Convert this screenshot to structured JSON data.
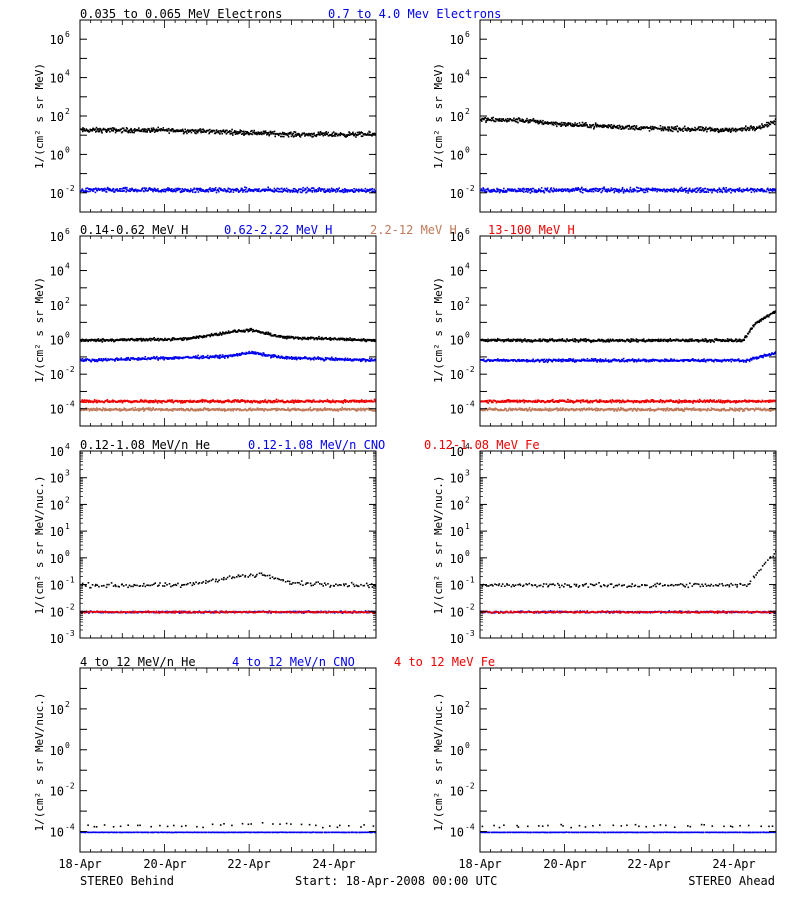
{
  "colors": {
    "black": "#000000",
    "blue": "#0000ee",
    "red": "#ee0000",
    "brown": "#c07a5a"
  },
  "legends": [
    [
      {
        "text": "0.035 to 0.065 MeV Electrons",
        "color": "black"
      },
      {
        "text": "0.7 to 4.0 Mev Electrons",
        "color": "blue"
      }
    ],
    [
      {
        "text": "0.14-0.62 MeV H",
        "color": "black"
      },
      {
        "text": "0.62-2.22 MeV H",
        "color": "blue"
      },
      {
        "text": "2.2-12 MeV H",
        "color": "brown"
      },
      {
        "text": "13-100 MeV H",
        "color": "red"
      }
    ],
    [
      {
        "text": "0.12-1.08 MeV/n He",
        "color": "black"
      },
      {
        "text": "0.12-1.08 MeV/n CNO",
        "color": "blue"
      },
      {
        "text": "0.12-1.08 MeV Fe",
        "color": "red"
      }
    ],
    [
      {
        "text": "4 to 12 MeV/n He",
        "color": "black"
      },
      {
        "text": "4 to 12 MeV/n CNO",
        "color": "blue"
      },
      {
        "text": "4 to 12 MeV Fe",
        "color": "red"
      }
    ]
  ],
  "ylabels": {
    "row1": "1/(cm² s sr MeV)",
    "row2": "1/(cm² s sr MeV)",
    "row3": "1/(cm² s sr MeV/nuc.)",
    "row4": "1/(cm² s sr MeV/nuc.)"
  },
  "xtick_labels": [
    "18-Apr",
    "20-Apr",
    "22-Apr",
    "24-Apr"
  ],
  "footer": {
    "left": "STEREO Behind",
    "center": "Start: 18-Apr-2008 00:00 UTC",
    "right": "STEREO Ahead"
  },
  "chart_data": [
    {
      "type": "scatter",
      "row": 1,
      "spacecraft": "STEREO Behind",
      "x_range": [
        "2008-04-18",
        "2008-04-25"
      ],
      "log_y": true,
      "ylim_exp": [
        -3,
        7
      ],
      "ytick_exp": [
        -2,
        0,
        2,
        4,
        6
      ],
      "series": [
        {
          "name": "0.035 to 0.065 MeV Electrons",
          "color": "black",
          "points": [
            [
              "2008-04-18",
              20
            ],
            [
              "2008-04-20",
              20
            ],
            [
              "2008-04-22",
              15
            ],
            [
              "2008-04-23",
              12
            ],
            [
              "2008-04-25",
              12
            ]
          ]
        },
        {
          "name": "0.7 to 4.0 Mev Electrons",
          "color": "blue",
          "points": [
            [
              "2008-04-18",
              0.015
            ],
            [
              "2008-04-21",
              0.015
            ],
            [
              "2008-04-25",
              0.015
            ]
          ]
        }
      ]
    },
    {
      "type": "scatter",
      "row": 1,
      "spacecraft": "STEREO Ahead",
      "x_range": [
        "2008-04-18",
        "2008-04-25"
      ],
      "log_y": true,
      "ylim_exp": [
        -3,
        7
      ],
      "ytick_exp": [
        -2,
        0,
        2,
        4,
        6
      ],
      "series": [
        {
          "name": "0.035 to 0.065 MeV Electrons",
          "color": "black",
          "points": [
            [
              "2008-04-18",
              70
            ],
            [
              "2008-04-19",
              65
            ],
            [
              "2008-04-20",
              40
            ],
            [
              "2008-04-22",
              25
            ],
            [
              "2008-04-24",
              20
            ],
            [
              "2008-04-24.6",
              30
            ],
            [
              "2008-04-25",
              60
            ]
          ]
        },
        {
          "name": "0.7 to 4.0 Mev Electrons",
          "color": "blue",
          "points": [
            [
              "2008-04-18",
              0.015
            ],
            [
              "2008-04-22",
              0.015
            ],
            [
              "2008-04-25",
              0.015
            ]
          ]
        }
      ]
    },
    {
      "type": "scatter",
      "row": 2,
      "spacecraft": "STEREO Behind",
      "x_range": [
        "2008-04-18",
        "2008-04-25"
      ],
      "log_y": true,
      "ylim_exp": [
        -5,
        6
      ],
      "ytick_exp": [
        -4,
        -2,
        0,
        2,
        4,
        6
      ],
      "series": [
        {
          "name": "0.14-0.62 MeV H",
          "color": "black",
          "points": [
            [
              "2008-04-18",
              1
            ],
            [
              "2008-04-20.5",
              1.2
            ],
            [
              "2008-04-21.5",
              3
            ],
            [
              "2008-04-22",
              4
            ],
            [
              "2008-04-22.8",
              1.5
            ],
            [
              "2008-04-25",
              1
            ]
          ]
        },
        {
          "name": "0.62-2.22 MeV H",
          "color": "blue",
          "points": [
            [
              "2008-04-18",
              0.07
            ],
            [
              "2008-04-21.5",
              0.12
            ],
            [
              "2008-04-22",
              0.2
            ],
            [
              "2008-04-22.8",
              0.1
            ],
            [
              "2008-04-25",
              0.07
            ]
          ]
        },
        {
          "name": "2.2-12 MeV H",
          "color": "brown",
          "points": [
            [
              "2008-04-18",
              0.0001
            ],
            [
              "2008-04-25",
              0.0001
            ]
          ]
        },
        {
          "name": "13-100 MeV H",
          "color": "red",
          "points": [
            [
              "2008-04-18",
              0.0003
            ],
            [
              "2008-04-25",
              0.0003
            ]
          ]
        }
      ]
    },
    {
      "type": "scatter",
      "row": 2,
      "spacecraft": "STEREO Ahead",
      "x_range": [
        "2008-04-18",
        "2008-04-25"
      ],
      "log_y": true,
      "ylim_exp": [
        -5,
        6
      ],
      "ytick_exp": [
        -4,
        -2,
        0,
        2,
        4,
        6
      ],
      "series": [
        {
          "name": "0.14-0.62 MeV H",
          "color": "black",
          "points": [
            [
              "2008-04-18",
              1
            ],
            [
              "2008-04-24.2",
              1
            ],
            [
              "2008-04-24.5",
              10
            ],
            [
              "2008-04-24.7",
              20
            ],
            [
              "2008-04-25",
              50
            ]
          ]
        },
        {
          "name": "0.62-2.22 MeV H",
          "color": "blue",
          "points": [
            [
              "2008-04-18",
              0.07
            ],
            [
              "2008-04-24.3",
              0.07
            ],
            [
              "2008-04-25",
              0.2
            ]
          ]
        },
        {
          "name": "2.2-12 MeV H",
          "color": "brown",
          "points": [
            [
              "2008-04-18",
              0.0001
            ],
            [
              "2008-04-25",
              0.0001
            ]
          ]
        },
        {
          "name": "13-100 MeV H",
          "color": "red",
          "points": [
            [
              "2008-04-18",
              0.0003
            ],
            [
              "2008-04-25",
              0.0003
            ]
          ]
        }
      ]
    },
    {
      "type": "scatter",
      "row": 3,
      "spacecraft": "STEREO Behind",
      "x_range": [
        "2008-04-18",
        "2008-04-25"
      ],
      "log_y": true,
      "ylim_exp": [
        -3,
        4
      ],
      "ytick_exp": [
        -3,
        -2,
        -1,
        0,
        1,
        2,
        3,
        4
      ],
      "series": [
        {
          "name": "0.12-1.08 MeV/n He",
          "color": "black",
          "points": [
            [
              "2008-04-18",
              0.1
            ],
            [
              "2008-04-20.5",
              0.1
            ],
            [
              "2008-04-21.5",
              0.2
            ],
            [
              "2008-04-22.3",
              0.25
            ],
            [
              "2008-04-23",
              0.12
            ],
            [
              "2008-04-25",
              0.1
            ]
          ]
        },
        {
          "name": "0.12-1.08 MeV/n CNO",
          "color": "blue",
          "points": [
            [
              "2008-04-18",
              0.01
            ],
            [
              "2008-04-25",
              0.01
            ]
          ]
        },
        {
          "name": "0.12-1.08 MeV Fe",
          "color": "red",
          "points": [
            [
              "2008-04-18",
              0.01
            ],
            [
              "2008-04-25",
              0.01
            ]
          ]
        }
      ]
    },
    {
      "type": "scatter",
      "row": 3,
      "spacecraft": "STEREO Ahead",
      "x_range": [
        "2008-04-18",
        "2008-04-25"
      ],
      "log_y": true,
      "ylim_exp": [
        -3,
        4
      ],
      "ytick_exp": [
        -3,
        -2,
        -1,
        0,
        1,
        2,
        3,
        4
      ],
      "series": [
        {
          "name": "0.12-1.08 MeV/n He",
          "color": "black",
          "points": [
            [
              "2008-04-18",
              0.1
            ],
            [
              "2008-04-24.3",
              0.1
            ],
            [
              "2008-04-24.6",
              0.4
            ],
            [
              "2008-04-25",
              2
            ]
          ]
        },
        {
          "name": "0.12-1.08 MeV/n CNO",
          "color": "blue",
          "points": [
            [
              "2008-04-18",
              0.01
            ],
            [
              "2008-04-25",
              0.01
            ]
          ]
        },
        {
          "name": "0.12-1.08 MeV Fe",
          "color": "red",
          "points": [
            [
              "2008-04-18",
              0.01
            ],
            [
              "2008-04-25",
              0.01
            ]
          ]
        }
      ]
    },
    {
      "type": "scatter",
      "row": 4,
      "spacecraft": "STEREO Behind",
      "x_range": [
        "2008-04-18",
        "2008-04-25"
      ],
      "log_y": true,
      "ylim_exp": [
        -5,
        4
      ],
      "ytick_exp": [
        -4,
        -2,
        0,
        2
      ],
      "series": [
        {
          "name": "4 to 12 MeV/n He",
          "color": "black",
          "points": [
            [
              "2008-04-18.5",
              0.0002
            ],
            [
              "2008-04-21",
              0.0002
            ],
            [
              "2008-04-22.2",
              0.0003
            ],
            [
              "2008-04-24",
              0.0002
            ]
          ]
        },
        {
          "name": "4 to 12 MeV/n CNO",
          "color": "blue",
          "points": [
            [
              "2008-04-18",
              0.0001
            ],
            [
              "2008-04-25",
              0.0001
            ]
          ]
        },
        {
          "name": "4 to 12 MeV Fe",
          "color": "red",
          "points": []
        }
      ]
    },
    {
      "type": "scatter",
      "row": 4,
      "spacecraft": "STEREO Ahead",
      "x_range": [
        "2008-04-18",
        "2008-04-25"
      ],
      "log_y": true,
      "ylim_exp": [
        -5,
        4
      ],
      "ytick_exp": [
        -4,
        -2,
        0,
        2
      ],
      "series": [
        {
          "name": "4 to 12 MeV/n He",
          "color": "black",
          "points": [
            [
              "2008-04-18.2",
              0.0002
            ],
            [
              "2008-04-20",
              0.0002
            ],
            [
              "2008-04-22",
              0.0002
            ],
            [
              "2008-04-24",
              0.0002
            ]
          ]
        },
        {
          "name": "4 to 12 MeV/n CNO",
          "color": "blue",
          "points": [
            [
              "2008-04-18",
              0.0001
            ],
            [
              "2008-04-25",
              0.0001
            ]
          ]
        },
        {
          "name": "4 to 12 MeV Fe",
          "color": "red",
          "points": []
        }
      ]
    }
  ]
}
